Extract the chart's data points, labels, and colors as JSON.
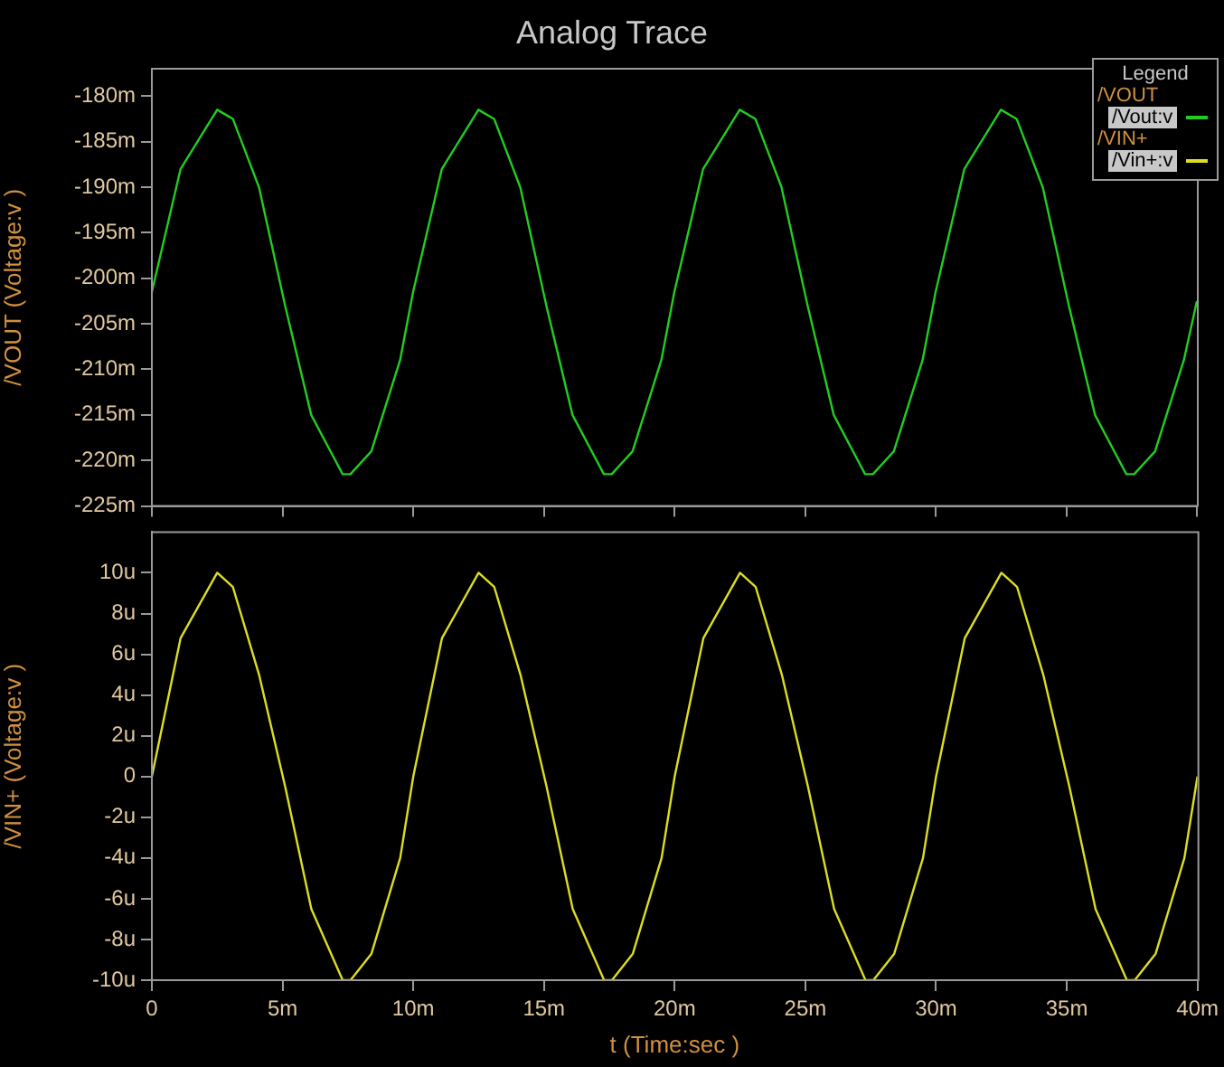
{
  "chart_data": [
    {
      "type": "line",
      "title": "Analog Trace",
      "ylabel": "/VOUT (Voltage:v )",
      "legend": "top right",
      "legend_title": "/VOUT",
      "annotations": [
        "Legend"
      ],
      "tick_labels": "y",
      "grid": false,
      "marker": "none",
      "line_style": "solid",
      "x": [
        0,
        1.1,
        2.5,
        3.1,
        4.1,
        5.1,
        6.1,
        7.3,
        7.6,
        8.4,
        9.5,
        10,
        11.1,
        12.5,
        13.1,
        14.1,
        15.1,
        16.1,
        17.3,
        17.6,
        18.4,
        19.5,
        20,
        21.1,
        22.5,
        23.1,
        24.1,
        25.1,
        26.1,
        27.3,
        27.6,
        28.4,
        29.5,
        30,
        31.1,
        32.5,
        33.1,
        34.1,
        35.1,
        36.1,
        37.3,
        37.6,
        38.4,
        39.5,
        40
      ],
      "series": [
        {
          "name": "/Vout:v",
          "color": "#22cc22",
          "values": [
            -201.5,
            -188,
            -181.5,
            -182.5,
            -190,
            -203,
            -215,
            -221.5,
            -221.5,
            -219,
            -209,
            -201.5,
            -188,
            -181.5,
            -182.5,
            -190,
            -203,
            -215,
            -221.5,
            -221.5,
            -219,
            -209,
            -201.5,
            -188,
            -181.5,
            -182.5,
            -190,
            -203,
            -215,
            -221.5,
            -221.5,
            -219,
            -209,
            -201.5,
            -188,
            -181.5,
            -182.5,
            -190,
            -203,
            -215,
            -221.5,
            -221.5,
            -219,
            -209,
            -202.5
          ]
        }
      ],
      "xlim": [
        0,
        40
      ],
      "xticks": [
        0,
        5,
        10,
        15,
        20,
        25,
        30,
        35,
        40
      ],
      "ylim": [
        -225,
        -177
      ],
      "yticks": [
        {
          "value": -180,
          "label": "-180m"
        },
        {
          "value": -185,
          "label": "-185m"
        },
        {
          "value": -190,
          "label": "-190m"
        },
        {
          "value": -195,
          "label": "-195m"
        },
        {
          "value": -200,
          "label": "-200m"
        },
        {
          "value": -205,
          "label": "-205m"
        },
        {
          "value": -210,
          "label": "-210m"
        },
        {
          "value": -215,
          "label": "-215m"
        },
        {
          "value": -220,
          "label": "-220m"
        },
        {
          "value": -225,
          "label": "-225m"
        }
      ]
    },
    {
      "type": "line",
      "xlabel": "t (Time:sec )",
      "ylabel": "/VIN+ (Voltage:v )",
      "legend": "top right",
      "legend_title": "/VIN+",
      "grid": false,
      "marker": "none",
      "line_style": "solid",
      "x": [
        0,
        1.1,
        2.5,
        3.1,
        4.1,
        5.1,
        6.1,
        7.3,
        7.6,
        8.4,
        9.5,
        10,
        11.1,
        12.5,
        13.1,
        14.1,
        15.1,
        16.1,
        17.3,
        17.6,
        18.4,
        19.5,
        20,
        21.1,
        22.5,
        23.1,
        24.1,
        25.1,
        26.1,
        27.3,
        27.6,
        28.4,
        29.5,
        30,
        31.1,
        32.5,
        33.1,
        34.1,
        35.1,
        36.1,
        37.3,
        37.6,
        38.4,
        39.5,
        40
      ],
      "series": [
        {
          "name": "/Vin+:v",
          "color": "#dddd22",
          "values": [
            0,
            6.8,
            10,
            9.3,
            5,
            -0.5,
            -6.5,
            -10,
            -10,
            -8.7,
            -4,
            0,
            6.8,
            10,
            9.3,
            5,
            -0.5,
            -6.5,
            -10,
            -10,
            -8.7,
            -4,
            0,
            6.8,
            10,
            9.3,
            5,
            -0.5,
            -6.5,
            -10,
            -10,
            -8.7,
            -4,
            0,
            6.8,
            10,
            9.3,
            5,
            -0.5,
            -6.5,
            -10,
            -10,
            -8.7,
            -4,
            0
          ]
        }
      ],
      "xlim": [
        0,
        40
      ],
      "xticks": [
        0,
        {
          "value": 5,
          "label": "5m"
        },
        {
          "value": 10,
          "label": "10m"
        },
        {
          "value": 15,
          "label": "15m"
        },
        {
          "value": 20,
          "label": "20m"
        },
        {
          "value": 25,
          "label": "25m"
        },
        {
          "value": 30,
          "label": "30m"
        },
        {
          "value": 35,
          "label": "35m"
        },
        {
          "value": 40,
          "label": "40m"
        }
      ],
      "ylim": [
        -10,
        12
      ],
      "yticks": [
        {
          "value": 10,
          "label": "10u"
        },
        {
          "value": 8,
          "label": "8u"
        },
        {
          "value": 6,
          "label": "6u"
        },
        {
          "value": 4,
          "label": "4u"
        },
        {
          "value": 2,
          "label": "2u"
        },
        0,
        {
          "value": -2,
          "label": "-2u"
        },
        {
          "value": -4,
          "label": "-4u"
        },
        {
          "value": -6,
          "label": "-6u"
        },
        {
          "value": -8,
          "label": "-8u"
        },
        {
          "value": -10,
          "label": "-10u"
        }
      ]
    }
  ]
}
